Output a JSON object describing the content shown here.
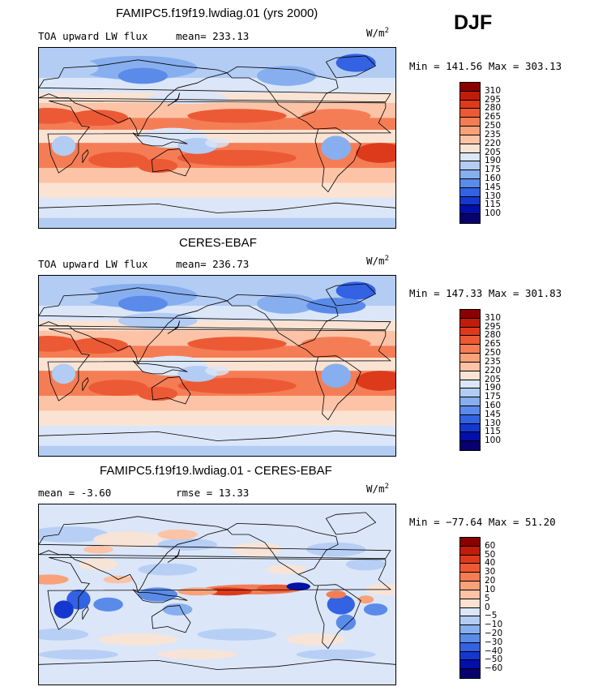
{
  "season": "DJF",
  "units_base": "W/m",
  "units_exp": "2",
  "panels": [
    {
      "title": "FAMIPC5.f19f19.lwdiag.01 (yrs 2000)",
      "left_label": "TOA upward LW flux",
      "mid_label": "mean=",
      "mid_value": "233.13",
      "minmax": "Min = 141.56 Max = 303.13"
    },
    {
      "title": "CERES-EBAF",
      "left_label": "TOA upward LW flux",
      "mid_label": "mean=",
      "mid_value": "236.73",
      "minmax": "Min = 147.33 Max = 301.83"
    },
    {
      "title": "FAMIPC5.f19f19.lwdiag.01 - CERES-EBAF",
      "left_label": "mean =",
      "left_value": "-3.60",
      "mid_label": "rmse =",
      "mid_value": "13.33",
      "minmax": "Min = −77.64 Max =  51.20"
    }
  ],
  "chart_data": [
    {
      "type": "heatmap",
      "title": "FAMIPC5.f19f19.lwdiag.01 (yrs 2000)",
      "variable": "TOA upward LW flux",
      "units": "W/m2",
      "mean": 233.13,
      "min": 141.56,
      "max": 303.13,
      "levels": [
        100,
        115,
        130,
        145,
        160,
        175,
        190,
        205,
        220,
        235,
        250,
        265,
        280,
        295,
        310
      ],
      "colors": [
        "#08006e",
        "#0010a8",
        "#1537cf",
        "#3362e2",
        "#5b8be9",
        "#87afef",
        "#b3ccf4",
        "#dbe6f8",
        "#fbe3d3",
        "#fcc3a6",
        "#f9a179",
        "#f57d55",
        "#ec5a35",
        "#dd3a1c",
        "#c01c0c",
        "#8b0000"
      ]
    },
    {
      "type": "heatmap",
      "title": "CERES-EBAF",
      "variable": "TOA upward LW flux",
      "units": "W/m2",
      "mean": 236.73,
      "min": 147.33,
      "max": 301.83,
      "levels": [
        100,
        115,
        130,
        145,
        160,
        175,
        190,
        205,
        220,
        235,
        250,
        265,
        280,
        295,
        310
      ],
      "colors": [
        "#08006e",
        "#0010a8",
        "#1537cf",
        "#3362e2",
        "#5b8be9",
        "#87afef",
        "#b3ccf4",
        "#dbe6f8",
        "#fbe3d3",
        "#fcc3a6",
        "#f9a179",
        "#f57d55",
        "#ec5a35",
        "#dd3a1c",
        "#c01c0c",
        "#8b0000"
      ]
    },
    {
      "type": "heatmap",
      "title": "FAMIPC5.f19f19.lwdiag.01 - CERES-EBAF",
      "units": "W/m2",
      "mean": -3.6,
      "rmse": 13.33,
      "min": -77.64,
      "max": 51.2,
      "levels": [
        -60,
        -50,
        -40,
        -30,
        -20,
        -10,
        -5,
        0,
        5,
        10,
        20,
        30,
        40,
        50,
        60
      ],
      "colors": [
        "#08006e",
        "#0010a8",
        "#1537cf",
        "#3362e2",
        "#5b8be9",
        "#87afef",
        "#b3ccf4",
        "#dbe6f8",
        "#fbe3d3",
        "#fcc3a6",
        "#f9a179",
        "#f57d55",
        "#ec5a35",
        "#dd3a1c",
        "#c01c0c",
        "#8b0000"
      ]
    }
  ]
}
